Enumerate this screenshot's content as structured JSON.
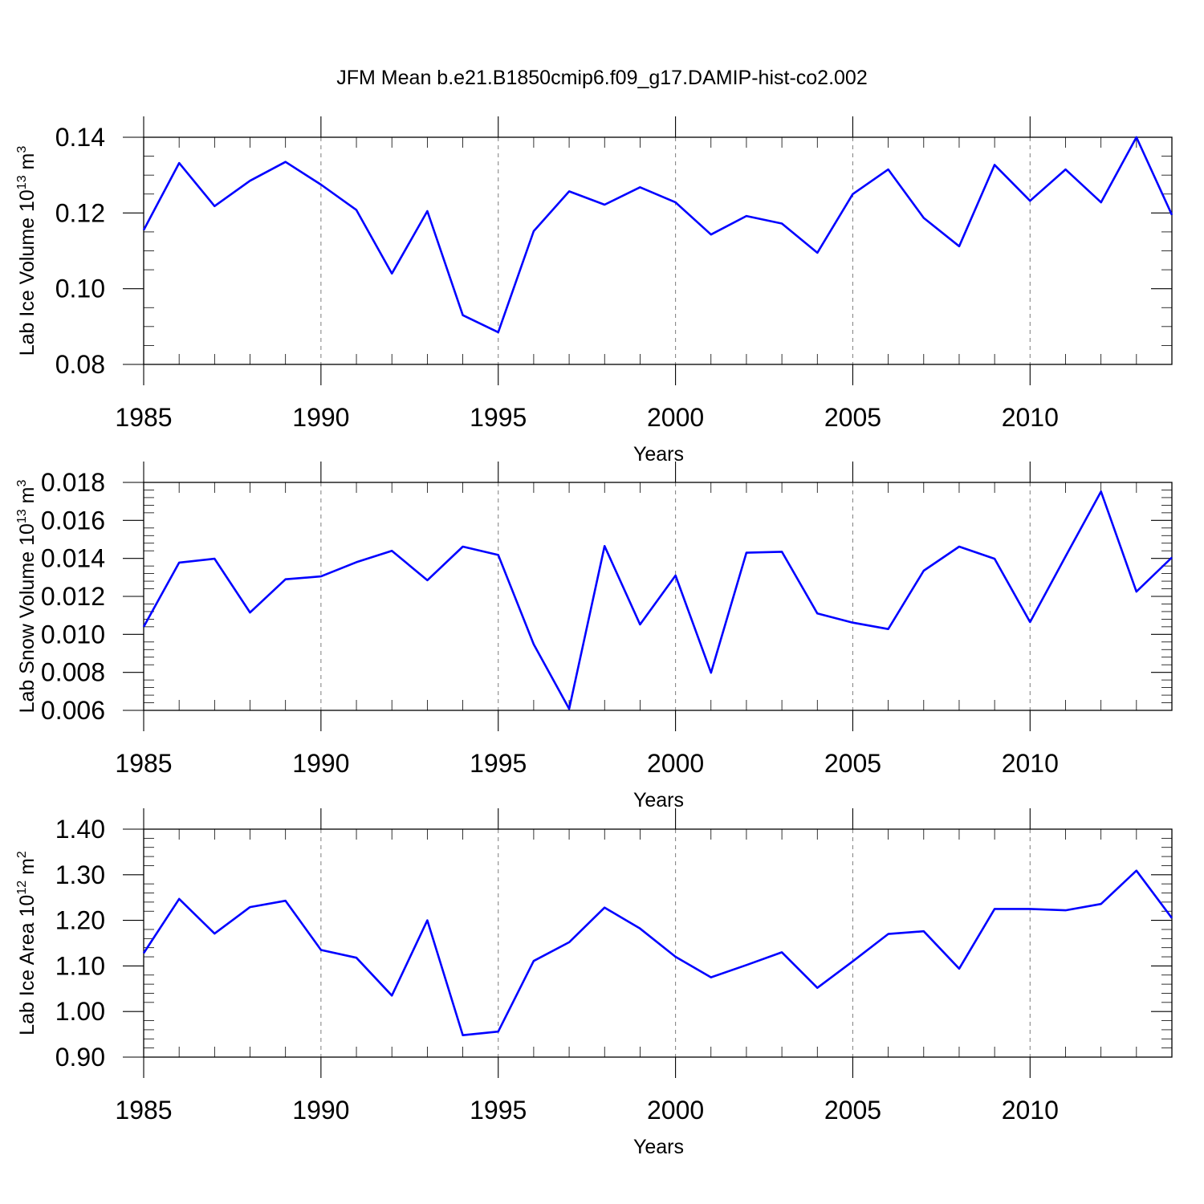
{
  "title": "JFM Mean b.e21.B1850cmip6.f09_g17.DAMIP-hist-co2.002",
  "colors": {
    "series": "#0000ff",
    "grid": "#888888",
    "axis": "#000000"
  },
  "chart_data": [
    {
      "type": "line",
      "ylabel": "Lab Ice Volume 10",
      "ylabel_exp": "13",
      "ylabel_unit": " m",
      "ylabel_unit_exp": "3",
      "xlabel": "Years",
      "xlim": [
        1985,
        2014
      ],
      "ylim": [
        0.08,
        0.14
      ],
      "xticks": [
        1985,
        1990,
        1995,
        2000,
        2005,
        2010
      ],
      "xtick_labels": [
        "1985",
        "1990",
        "1995",
        "2000",
        "2005",
        "2010"
      ],
      "yticks": [
        0.08,
        0.1,
        0.12,
        0.14
      ],
      "ytick_labels": [
        "0.08",
        "0.10",
        "0.12",
        "0.14"
      ],
      "yminor_step": 0.005,
      "x": [
        1985,
        1986,
        1987,
        1988,
        1989,
        1990,
        1991,
        1992,
        1993,
        1994,
        1995,
        1996,
        1997,
        1998,
        1999,
        2000,
        2001,
        2002,
        2003,
        2004,
        2005,
        2006,
        2007,
        2008,
        2009,
        2010,
        2011,
        2012,
        2013,
        2014
      ],
      "values": [
        0.1155,
        0.1332,
        0.1218,
        0.1285,
        0.1335,
        0.1275,
        0.1208,
        0.104,
        0.1205,
        0.093,
        0.0885,
        0.1152,
        0.1257,
        0.1222,
        0.1268,
        0.1228,
        0.1143,
        0.1192,
        0.1172,
        0.1095,
        0.125,
        0.1315,
        0.1187,
        0.1112,
        0.1327,
        0.1232,
        0.1315,
        0.1228,
        0.14,
        0.1195
      ]
    },
    {
      "type": "line",
      "ylabel": "Lab Snow Volume 10",
      "ylabel_exp": "13",
      "ylabel_unit": " m",
      "ylabel_unit_exp": "3",
      "xlabel": "Years",
      "xlim": [
        1985,
        2014
      ],
      "ylim": [
        0.006,
        0.018
      ],
      "xticks": [
        1985,
        1990,
        1995,
        2000,
        2005,
        2010
      ],
      "xtick_labels": [
        "1985",
        "1990",
        "1995",
        "2000",
        "2005",
        "2010"
      ],
      "yticks": [
        0.006,
        0.008,
        0.01,
        0.012,
        0.014,
        0.016,
        0.018
      ],
      "ytick_labels": [
        "0.006",
        "0.008",
        "0.010",
        "0.012",
        "0.014",
        "0.016",
        "0.018"
      ],
      "yminor_step": 0.0004,
      "x": [
        1985,
        1986,
        1987,
        1988,
        1989,
        1990,
        1991,
        1992,
        1993,
        1994,
        1995,
        1996,
        1997,
        1998,
        1999,
        2000,
        2001,
        2002,
        2003,
        2004,
        2005,
        2006,
        2007,
        2008,
        2009,
        2010,
        2011,
        2012,
        2013,
        2014
      ],
      "values": [
        0.0104,
        0.01378,
        0.01398,
        0.01115,
        0.0129,
        0.01305,
        0.0138,
        0.0144,
        0.01285,
        0.01462,
        0.01418,
        0.00948,
        0.00608,
        0.01465,
        0.01052,
        0.0131,
        0.00798,
        0.0143,
        0.01435,
        0.0111,
        0.01062,
        0.01028,
        0.01335,
        0.01462,
        0.01398,
        0.01065,
        0.0141,
        0.01752,
        0.01225,
        0.01405
      ]
    },
    {
      "type": "line",
      "ylabel": "Lab Ice Area 10",
      "ylabel_exp": "12",
      "ylabel_unit": " m",
      "ylabel_unit_exp": "2",
      "xlabel": "Years",
      "xlim": [
        1985,
        2014
      ],
      "ylim": [
        0.9,
        1.4
      ],
      "xticks": [
        1985,
        1990,
        1995,
        2000,
        2005,
        2010
      ],
      "xtick_labels": [
        "1985",
        "1990",
        "1995",
        "2000",
        "2005",
        "2010"
      ],
      "yticks": [
        0.9,
        1.0,
        1.1,
        1.2,
        1.3,
        1.4
      ],
      "ytick_labels": [
        "0.90",
        "1.00",
        "1.10",
        "1.20",
        "1.30",
        "1.40"
      ],
      "yminor_step": 0.02,
      "x": [
        1985,
        1986,
        1987,
        1988,
        1989,
        1990,
        1991,
        1992,
        1993,
        1994,
        1995,
        1996,
        1997,
        1998,
        1999,
        2000,
        2001,
        2002,
        2003,
        2004,
        2005,
        2006,
        2007,
        2008,
        2009,
        2010,
        2011,
        2012,
        2013,
        2014
      ],
      "values": [
        1.128,
        1.247,
        1.171,
        1.229,
        1.243,
        1.135,
        1.118,
        1.035,
        1.2,
        0.948,
        0.956,
        1.111,
        1.152,
        1.228,
        1.182,
        1.12,
        1.075,
        1.102,
        1.13,
        1.052,
        1.11,
        1.17,
        1.176,
        1.094,
        1.225,
        1.225,
        1.222,
        1.236,
        1.309,
        1.205
      ]
    }
  ]
}
